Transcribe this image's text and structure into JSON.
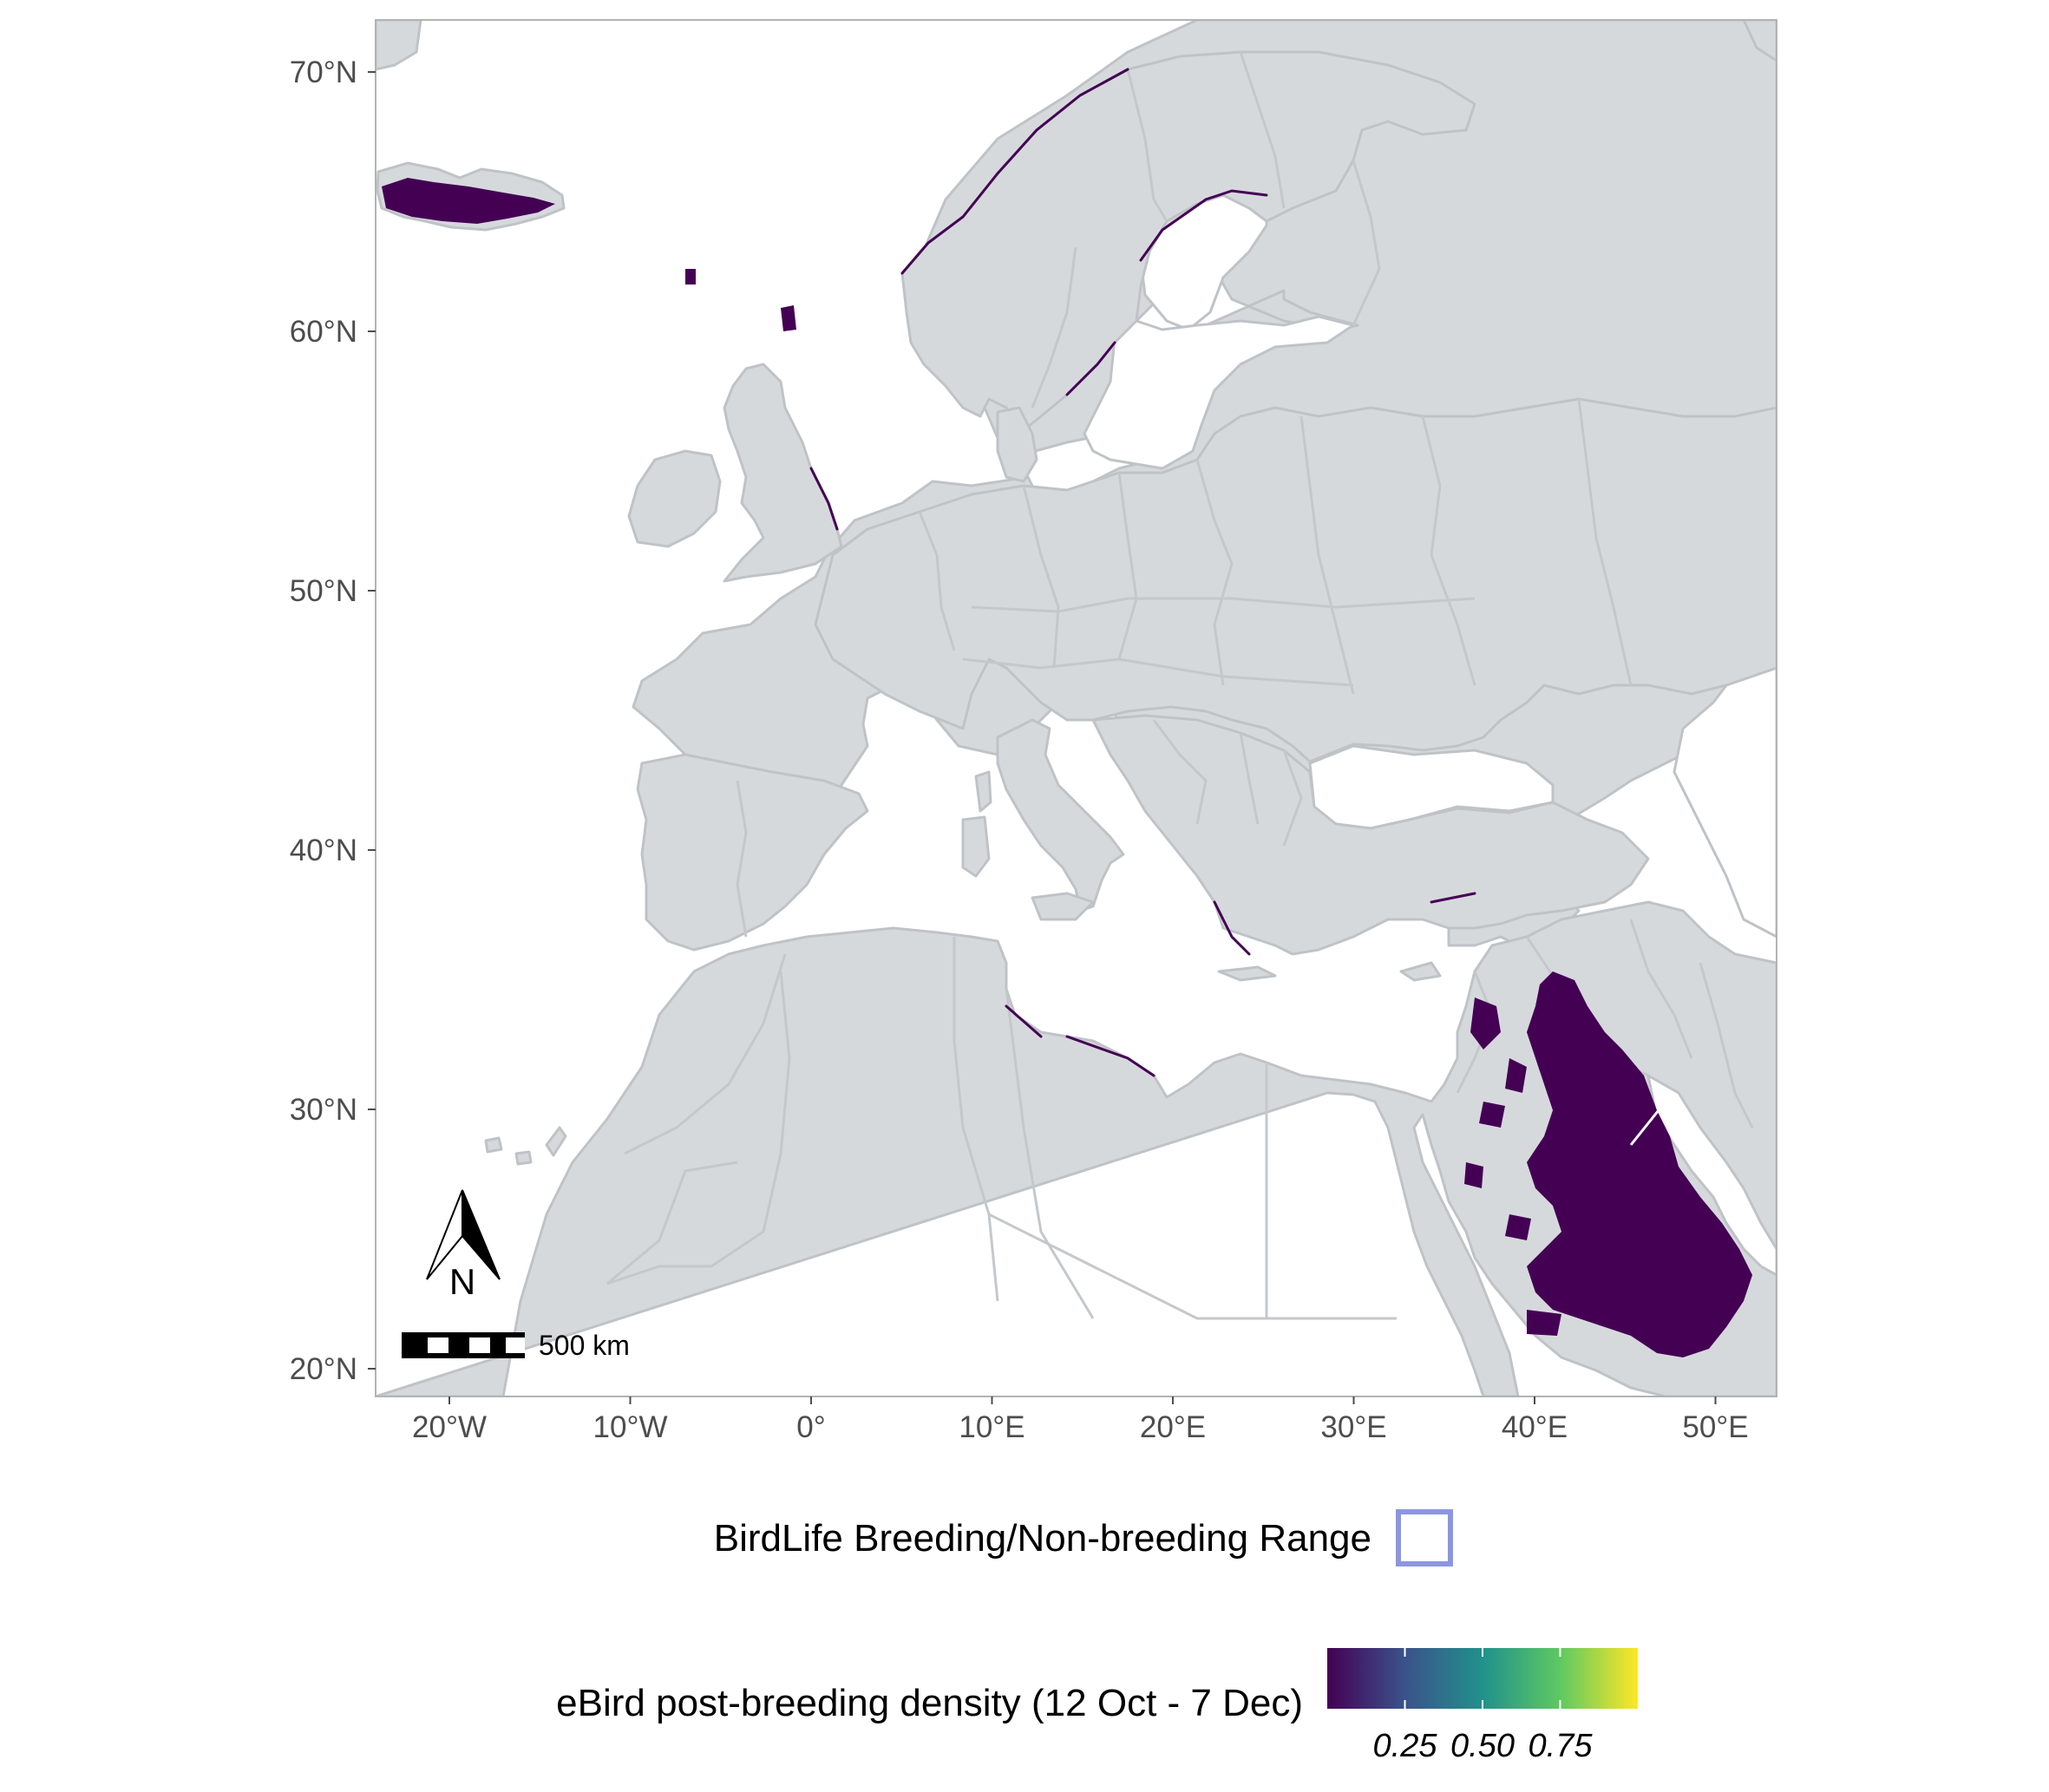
{
  "map": {
    "lon_range": [
      -24,
      53
    ],
    "lat_range": [
      19,
      72
    ],
    "lat_ticks": [
      {
        "value": 70,
        "label": "70°N"
      },
      {
        "value": 60,
        "label": "60°N"
      },
      {
        "value": 50,
        "label": "50°N"
      },
      {
        "value": 40,
        "label": "40°N"
      },
      {
        "value": 30,
        "label": "30°N"
      },
      {
        "value": 20,
        "label": "20°N"
      }
    ],
    "lon_ticks": [
      {
        "value": -20,
        "label": "20°W"
      },
      {
        "value": -10,
        "label": "10°W"
      },
      {
        "value": 0,
        "label": "0°"
      },
      {
        "value": 10,
        "label": "10°E"
      },
      {
        "value": 20,
        "label": "20°E"
      },
      {
        "value": 30,
        "label": "30°E"
      },
      {
        "value": 40,
        "label": "40°E"
      },
      {
        "value": 50,
        "label": "50°E"
      }
    ],
    "colors": {
      "land": "#d6d9dc",
      "land_border": "#bfc3c7",
      "sea": "#ffffff",
      "panel_border": "#b3b3b3",
      "density_low": "#440154",
      "birdlife_range_outline": "#8c96e0"
    }
  },
  "north_arrow": {
    "label": "N"
  },
  "scale_bar": {
    "label": "500 km"
  },
  "legend": {
    "birdlife_label": "BirdLife Breeding/Non-breeding Range",
    "ebird_label": "eBird post-breeding density (12 Oct - 7 Dec)",
    "colorbar_ticks": [
      {
        "value": 0.25,
        "label": "0.25"
      },
      {
        "value": 0.5,
        "label": "0.50"
      },
      {
        "value": 0.75,
        "label": "0.75"
      }
    ],
    "colorbar_stops": [
      "#440154",
      "#3b528b",
      "#21918c",
      "#5ec962",
      "#fde725"
    ]
  },
  "density_regions": [
    {
      "name": "arabian-peninsula-interior",
      "lon": [
        37,
        50
      ],
      "lat": [
        20.5,
        33
      ],
      "level": "low"
    },
    {
      "name": "iceland",
      "lon": [
        -24,
        -13.5
      ],
      "lat": [
        63.3,
        66.5
      ],
      "level": "low"
    },
    {
      "name": "faroe-islands",
      "lon": [
        -7.5,
        -6.3
      ],
      "lat": [
        61.4,
        62.4
      ],
      "level": "low"
    }
  ]
}
